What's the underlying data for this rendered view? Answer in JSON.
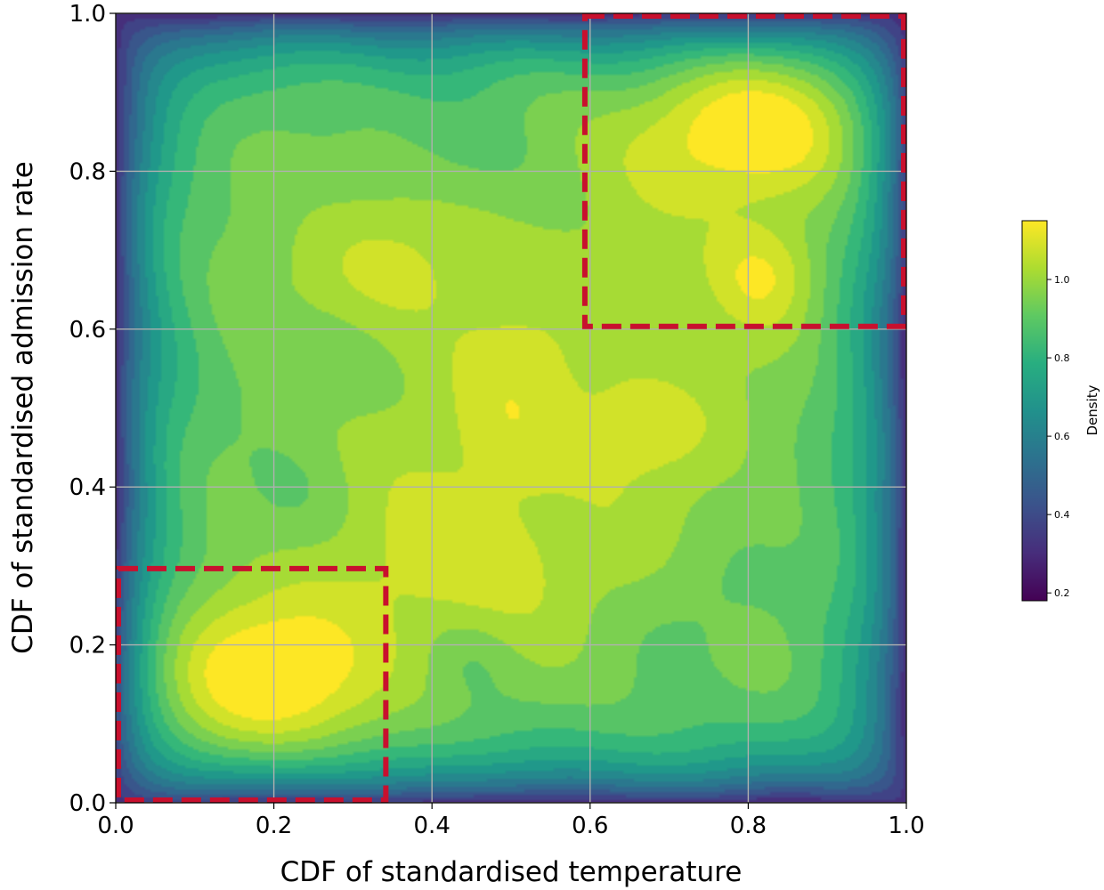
{
  "chart_data": {
    "type": "heatmap",
    "subtype": "filled-contour density",
    "colormap": "viridis",
    "xlabel": "CDF of standardised temperature",
    "ylabel": "CDF of standardised admission rate",
    "xlim": [
      0.0,
      1.0
    ],
    "ylim": [
      0.0,
      1.0
    ],
    "xticks": [
      "0.0",
      "0.2",
      "0.4",
      "0.6",
      "0.8",
      "1.0"
    ],
    "yticks": [
      "0.0",
      "0.2",
      "0.4",
      "0.6",
      "0.8",
      "1.0"
    ],
    "grid": true,
    "colorbar": {
      "label": "Density",
      "range": [
        0.18,
        1.15
      ],
      "ticks": [
        "0.2",
        "0.4",
        "0.6",
        "0.8",
        "1.0"
      ]
    },
    "density_peaks": [
      {
        "x": 0.17,
        "y": 0.15,
        "sx": 0.13,
        "sy": 0.08,
        "amp": 0.26
      },
      {
        "x": 0.82,
        "y": 0.86,
        "sx": 0.12,
        "sy": 0.07,
        "amp": 0.26
      },
      {
        "x": 0.82,
        "y": 0.67,
        "sx": 0.05,
        "sy": 0.05,
        "amp": 0.16
      },
      {
        "x": 0.5,
        "y": 0.5,
        "sx": 0.2,
        "sy": 0.2,
        "amp": 0.08
      },
      {
        "x": 0.68,
        "y": 0.48,
        "sx": 0.06,
        "sy": 0.05,
        "amp": 0.08
      },
      {
        "x": 0.45,
        "y": 0.3,
        "sx": 0.1,
        "sy": 0.06,
        "amp": 0.08
      },
      {
        "x": 0.32,
        "y": 0.68,
        "sx": 0.1,
        "sy": 0.06,
        "amp": 0.06
      },
      {
        "x": 0.5,
        "y": 0.48,
        "sx": 0.05,
        "sy": 0.08,
        "amp": 0.05
      }
    ],
    "density_dips": [
      {
        "x": 0.25,
        "y": 0.55,
        "sx": 0.06,
        "sy": 0.05,
        "amp": 0.08
      },
      {
        "x": 0.44,
        "y": 0.82,
        "sx": 0.07,
        "sy": 0.05,
        "amp": 0.06
      },
      {
        "x": 0.45,
        "y": 0.18,
        "sx": 0.04,
        "sy": 0.04,
        "amp": 0.06
      },
      {
        "x": 0.75,
        "y": 0.25,
        "sx": 0.06,
        "sy": 0.06,
        "amp": 0.05
      },
      {
        "x": 0.22,
        "y": 0.4,
        "sx": 0.05,
        "sy": 0.05,
        "amp": 0.04
      }
    ],
    "highlight_boxes": [
      {
        "x0": 0.0,
        "x1": 0.345,
        "y0": 0.0,
        "y1": 0.3,
        "color": "#c8102e"
      },
      {
        "x0": 0.59,
        "x1": 1.0,
        "y0": 0.6,
        "y1": 1.0,
        "color": "#c8102e"
      }
    ]
  }
}
